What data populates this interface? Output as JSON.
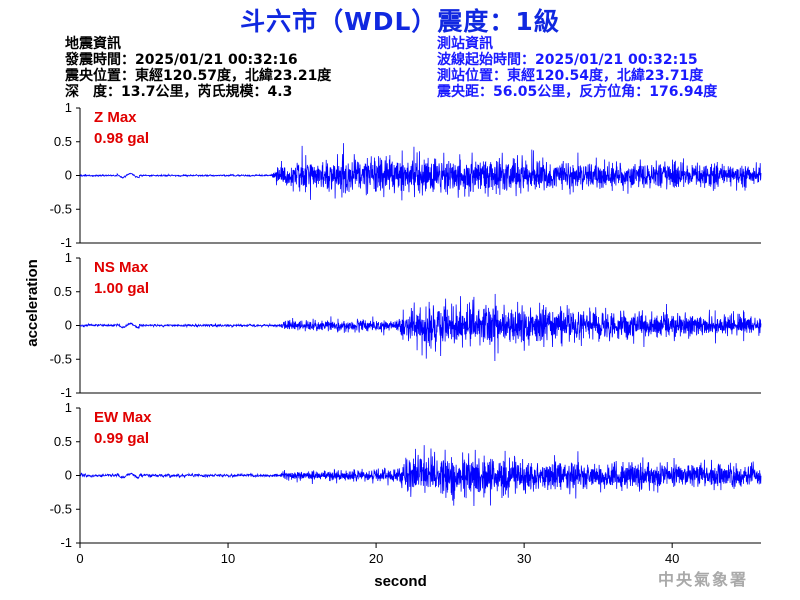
{
  "title": "斗六市（WDL）震度：1級",
  "quake_info": {
    "heading": "地震資訊",
    "time": "發震時間：2025/01/21 00:32:16",
    "location": "震央位置：東經120.57度，北緯23.21度",
    "depth_magnitude": "深　度：13.7公里，芮氏規模：4.3"
  },
  "station_info": {
    "heading": "測站資訊",
    "wave_start": "波線起始時間：2025/01/21 00:32:15",
    "location": "測站位置：東經120.54度，北緯23.71度",
    "distance_azimuth": "震央距：56.05公里，反方位角：176.94度"
  },
  "credit": "中央氣象署",
  "colors": {
    "title": "#1028e0",
    "station_text": "#1a1aff",
    "trace": "#0000ff",
    "max_label": "#e00000"
  },
  "chart_data": {
    "type": "line",
    "xlabel": "second",
    "ylabel": "acceleration",
    "xlim": [
      0,
      46
    ],
    "x_ticks": [
      "0",
      "10",
      "20",
      "30",
      "40"
    ],
    "ylim": [
      -1,
      1
    ],
    "y_ticks": [
      "1",
      "0.5",
      "0",
      "-0.5",
      "-1"
    ],
    "grid": false,
    "panels": [
      {
        "component": "Z",
        "max_label": "Z Max",
        "max_value": "0.98 gal",
        "envelope": [
          [
            0,
            0.02
          ],
          [
            12.9,
            0.02
          ],
          [
            13.3,
            0.3
          ],
          [
            15,
            0.55
          ],
          [
            19,
            0.55
          ],
          [
            23,
            0.65
          ],
          [
            30,
            0.55
          ],
          [
            36,
            0.45
          ],
          [
            42,
            0.38
          ],
          [
            46,
            0.3
          ]
        ]
      },
      {
        "component": "NS",
        "max_label": "NS Max",
        "max_value": "1.00 gal",
        "envelope": [
          [
            0,
            0.03
          ],
          [
            13.5,
            0.03
          ],
          [
            13.8,
            0.15
          ],
          [
            21.5,
            0.2
          ],
          [
            22,
            0.5
          ],
          [
            24,
            0.75
          ],
          [
            30,
            0.6
          ],
          [
            38,
            0.45
          ],
          [
            46,
            0.3
          ]
        ]
      },
      {
        "component": "EW",
        "max_label": "EW Max",
        "max_value": "0.99 gal",
        "envelope": [
          [
            0,
            0.04
          ],
          [
            13.5,
            0.04
          ],
          [
            13.8,
            0.12
          ],
          [
            21.5,
            0.25
          ],
          [
            22,
            0.55
          ],
          [
            25,
            0.72
          ],
          [
            32,
            0.5
          ],
          [
            40,
            0.38
          ],
          [
            46,
            0.35
          ]
        ]
      }
    ]
  }
}
